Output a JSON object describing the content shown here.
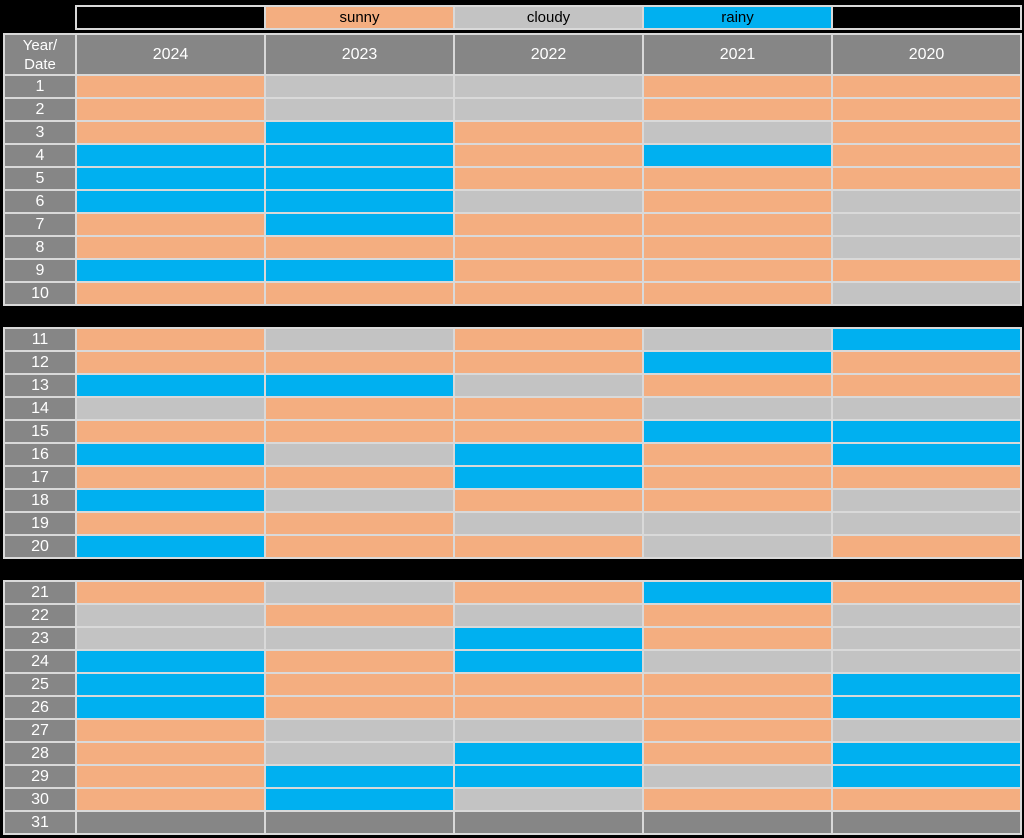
{
  "legend": {
    "items": [
      {
        "label": "sunny",
        "color": "#F4AE80"
      },
      {
        "label": "cloudy",
        "color": "#C3C3C3"
      },
      {
        "label": "rainy",
        "color": "#00B0F0"
      }
    ]
  },
  "header": {
    "row_label_line1": "Year/",
    "row_label_line2": "Date"
  },
  "colors": {
    "sunny": "#F4AE80",
    "cloudy": "#C3C3C3",
    "rainy": "#00B0F0",
    "na": "#868686",
    "header_bg": "#868686",
    "header_text": "#FFFFFF",
    "grid_line": "#D9D9D9",
    "page_background": "#000000",
    "legend_text": "#000000"
  },
  "chart_data": {
    "type": "heatmap",
    "title": "",
    "x": [
      "2024",
      "2023",
      "2022",
      "2021",
      "2020"
    ],
    "y": [
      "1",
      "2",
      "3",
      "4",
      "5",
      "6",
      "7",
      "8",
      "9",
      "10",
      "11",
      "12",
      "13",
      "14",
      "15",
      "16",
      "17",
      "18",
      "19",
      "20",
      "21",
      "22",
      "23",
      "24",
      "25",
      "26",
      "27",
      "28",
      "29",
      "30",
      "31"
    ],
    "categories": [
      "sunny",
      "cloudy",
      "rainy"
    ],
    "legend_position": "top",
    "values": [
      [
        "sunny",
        "cloudy",
        "cloudy",
        "sunny",
        "sunny"
      ],
      [
        "sunny",
        "cloudy",
        "cloudy",
        "sunny",
        "sunny"
      ],
      [
        "sunny",
        "rainy",
        "sunny",
        "cloudy",
        "sunny"
      ],
      [
        "rainy",
        "rainy",
        "sunny",
        "rainy",
        "sunny"
      ],
      [
        "rainy",
        "rainy",
        "sunny",
        "sunny",
        "sunny"
      ],
      [
        "rainy",
        "rainy",
        "cloudy",
        "sunny",
        "cloudy"
      ],
      [
        "sunny",
        "rainy",
        "sunny",
        "sunny",
        "cloudy"
      ],
      [
        "sunny",
        "sunny",
        "sunny",
        "sunny",
        "cloudy"
      ],
      [
        "rainy",
        "rainy",
        "sunny",
        "sunny",
        "sunny"
      ],
      [
        "sunny",
        "sunny",
        "sunny",
        "sunny",
        "cloudy"
      ],
      [
        "sunny",
        "cloudy",
        "sunny",
        "cloudy",
        "rainy"
      ],
      [
        "sunny",
        "sunny",
        "sunny",
        "rainy",
        "sunny"
      ],
      [
        "rainy",
        "rainy",
        "cloudy",
        "sunny",
        "sunny"
      ],
      [
        "cloudy",
        "sunny",
        "sunny",
        "cloudy",
        "cloudy"
      ],
      [
        "sunny",
        "sunny",
        "sunny",
        "rainy",
        "rainy"
      ],
      [
        "rainy",
        "cloudy",
        "rainy",
        "sunny",
        "rainy"
      ],
      [
        "sunny",
        "sunny",
        "rainy",
        "sunny",
        "sunny"
      ],
      [
        "rainy",
        "cloudy",
        "sunny",
        "sunny",
        "cloudy"
      ],
      [
        "sunny",
        "sunny",
        "cloudy",
        "cloudy",
        "cloudy"
      ],
      [
        "rainy",
        "sunny",
        "sunny",
        "cloudy",
        "sunny"
      ],
      [
        "sunny",
        "cloudy",
        "sunny",
        "rainy",
        "sunny"
      ],
      [
        "cloudy",
        "sunny",
        "cloudy",
        "sunny",
        "cloudy"
      ],
      [
        "cloudy",
        "cloudy",
        "rainy",
        "sunny",
        "cloudy"
      ],
      [
        "rainy",
        "sunny",
        "rainy",
        "cloudy",
        "cloudy"
      ],
      [
        "rainy",
        "sunny",
        "sunny",
        "sunny",
        "rainy"
      ],
      [
        "rainy",
        "sunny",
        "sunny",
        "sunny",
        "rainy"
      ],
      [
        "sunny",
        "cloudy",
        "cloudy",
        "sunny",
        "cloudy"
      ],
      [
        "sunny",
        "cloudy",
        "rainy",
        "sunny",
        "rainy"
      ],
      [
        "sunny",
        "rainy",
        "rainy",
        "cloudy",
        "rainy"
      ],
      [
        "sunny",
        "rainy",
        "cloudy",
        "sunny",
        "sunny"
      ],
      [
        "na",
        "na",
        "na",
        "na",
        "na"
      ]
    ]
  }
}
